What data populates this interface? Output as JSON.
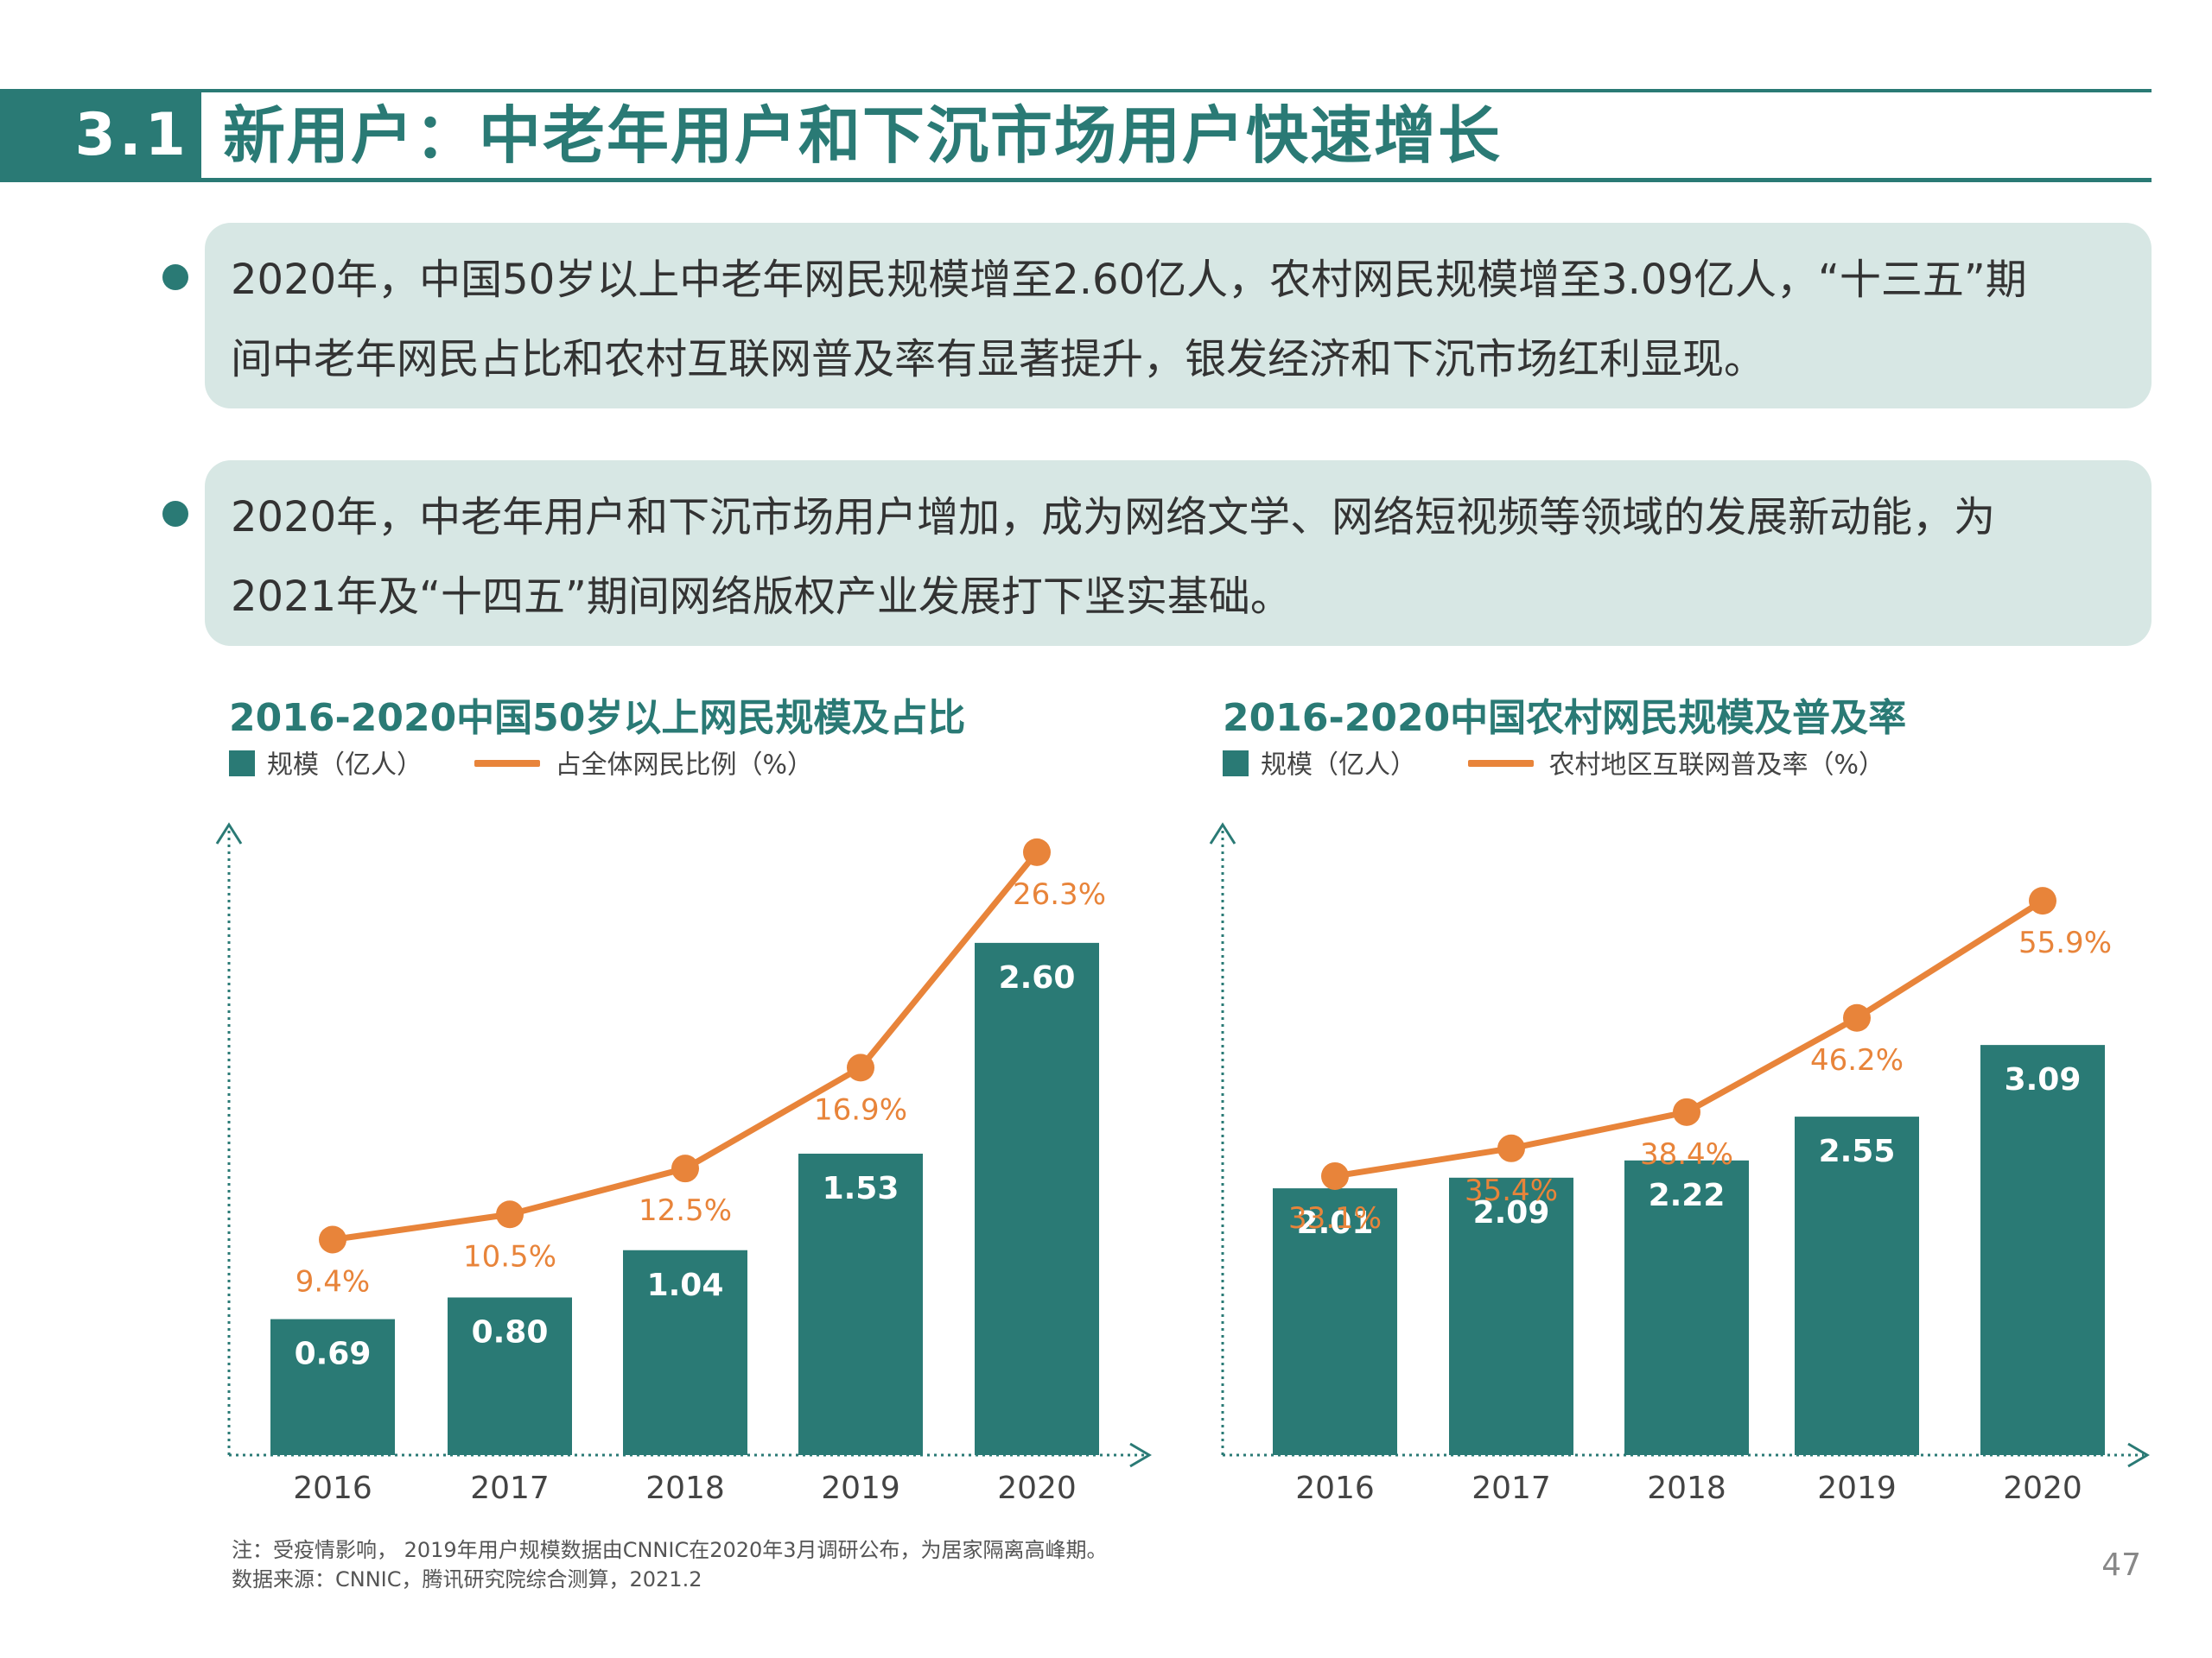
{
  "header": {
    "section_number": "3.1",
    "title": "新用户：中老年用户和下沉市场用户快速增长"
  },
  "bullets": [
    {
      "line1": "2020年，中国50岁以上中老年网民规模增至2.60亿人，农村网民规模增至3.09亿人，“十三五”期",
      "line2": "间中老年网民占比和农村互联网普及率有显著提升，银发经济和下沉市场红利显现。"
    },
    {
      "line1": "2020年，中老年用户和下沉市场用户增加，成为网络文学、网络短视频等领域的发展新动能，为",
      "line2": "2021年及“十四五”期间网络版权产业发展打下坚实基础。"
    }
  ],
  "colors": {
    "teal": "#2a7a75",
    "orange": "#e8843a",
    "bubble": "#d7e7e4"
  },
  "chart_data": [
    {
      "type": "bar",
      "title": "2016-2020中国50岁以上网民规模及占比",
      "categories": [
        "2016",
        "2017",
        "2018",
        "2019",
        "2020"
      ],
      "series": [
        {
          "name": "规模（亿人）",
          "type": "bar",
          "values": [
            0.69,
            0.8,
            1.04,
            1.53,
            2.6
          ],
          "labels": [
            "0.69",
            "0.80",
            "1.04",
            "1.53",
            "2.60"
          ]
        },
        {
          "name": "占全体网民比例（%）",
          "type": "line",
          "values": [
            9.4,
            10.5,
            12.5,
            16.9,
            26.3
          ],
          "labels": [
            "9.4%",
            "10.5%",
            "12.5%",
            "16.9%",
            "26.3%"
          ]
        }
      ],
      "bar_range": [
        0,
        3.2
      ],
      "line_range": [
        0,
        27.5
      ]
    },
    {
      "type": "bar",
      "title": "2016-2020中国农村网民规模及普及率",
      "categories": [
        "2016",
        "2017",
        "2018",
        "2019",
        "2020"
      ],
      "series": [
        {
          "name": "规模（亿人）",
          "type": "bar",
          "values": [
            2.01,
            2.09,
            2.22,
            2.55,
            3.09
          ],
          "labels": [
            "2.01",
            "2.09",
            "2.22",
            "2.55",
            "3.09"
          ]
        },
        {
          "name": "农村地区互联网普及率（%）",
          "type": "line",
          "values": [
            33.1,
            35.4,
            38.4,
            46.2,
            55.9
          ],
          "labels": [
            "33.1%",
            "35.4%",
            "38.4%",
            "46.2%",
            "55.9%"
          ]
        }
      ],
      "bar_range": [
        0,
        4.75
      ],
      "line_range": [
        10,
        62.2
      ]
    }
  ],
  "footnote": {
    "line1": "注：受疫情影响， 2019年用户规模数据由CNNIC在2020年3月调研公布，为居家隔离高峰期。",
    "line2": "数据来源：CNNIC，腾讯研究院综合测算，2021.2"
  },
  "page_number": "47"
}
